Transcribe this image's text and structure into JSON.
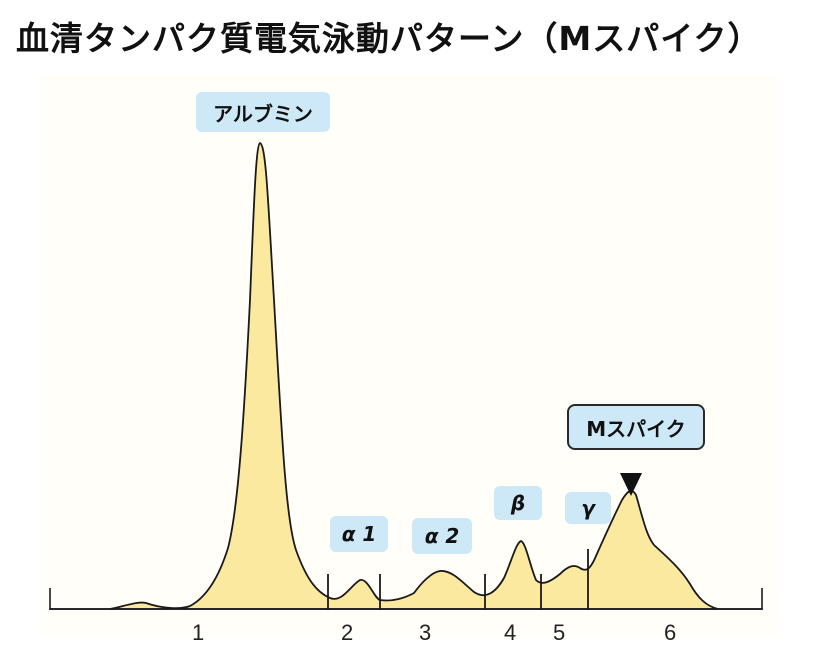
{
  "title": "血清タンパク質電気泳動パターン（Mスパイク）",
  "peaks": {
    "albumin": "アルブミン",
    "alpha1": "α 1",
    "alpha2": "α 2",
    "beta": "β",
    "gamma": "γ",
    "m_spike": "Mスパイク"
  },
  "fractions": [
    "1",
    "2",
    "3",
    "4",
    "5",
    "6"
  ],
  "colors": {
    "fill": "#fbe9a0",
    "line": "#1a1a1a",
    "label_bg": "#cde9f7"
  }
}
